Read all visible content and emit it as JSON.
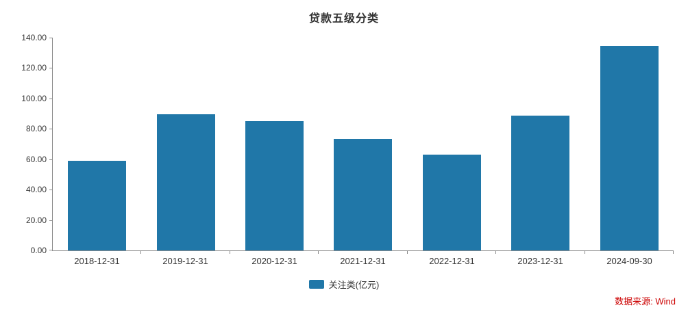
{
  "title": "贷款五级分类",
  "legend": {
    "label": "关注类(亿元)",
    "color": "#2077A8"
  },
  "source": "数据来源: Wind",
  "chart_data": {
    "type": "bar",
    "title": "贷款五级分类",
    "categories": [
      "2018-12-31",
      "2019-12-31",
      "2020-12-31",
      "2021-12-31",
      "2022-12-31",
      "2023-12-31",
      "2024-09-30"
    ],
    "series": [
      {
        "name": "关注类(亿元)",
        "values": [
          59.0,
          89.5,
          85.0,
          73.5,
          63.0,
          88.5,
          134.5
        ]
      }
    ],
    "xlabel": "",
    "ylabel": "",
    "ylim": [
      0,
      140
    ],
    "ytick_step": 20,
    "ytick_labels": [
      "0.00",
      "20.00",
      "40.00",
      "60.00",
      "80.00",
      "100.00",
      "120.00",
      "140.00"
    ],
    "grid": false,
    "legend_position": "bottom",
    "bar_color": "#2077A8",
    "axis_color": "#898989"
  }
}
